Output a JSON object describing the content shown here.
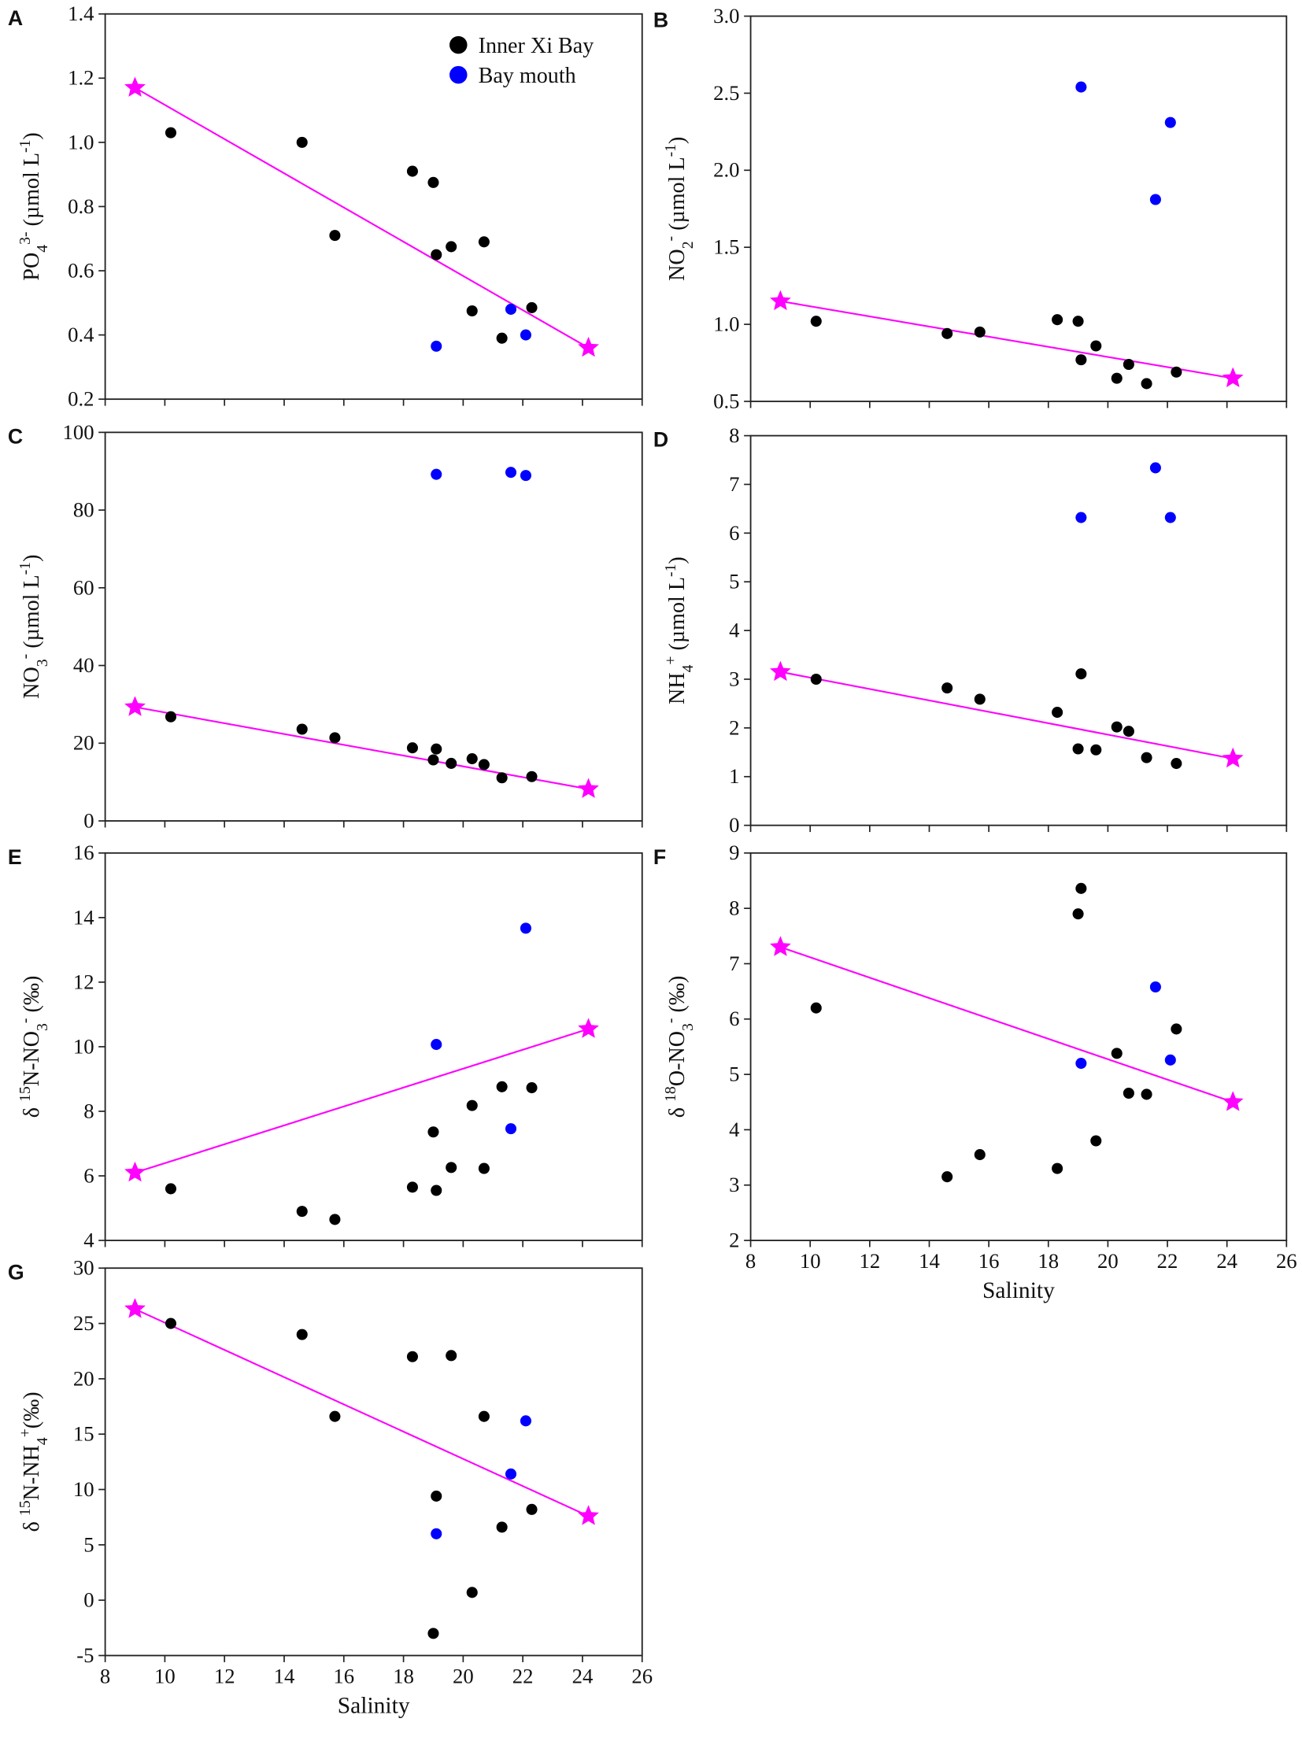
{
  "colors": {
    "inner": "#000000",
    "mouth": "#0000ff",
    "line": "#ff00ff",
    "axis": "#222222"
  },
  "legend": {
    "placement": "top-right",
    "entries": [
      {
        "label": "Inner Xi Bay",
        "color": "#000000"
      },
      {
        "label": "Bay mouth",
        "color": "#0000ff"
      }
    ]
  },
  "chart_data": [
    {
      "panel": "A",
      "type": "scatter",
      "xlabel": "",
      "xlim": [
        8,
        26
      ],
      "xticks": [
        8,
        10,
        12,
        14,
        16,
        18,
        20,
        22,
        24,
        26
      ],
      "show_xtick_labels": false,
      "ylabel": [
        {
          "t": "PO"
        },
        {
          "t": "4",
          "s": "sub"
        },
        {
          "t": "3-",
          "s": "sup"
        },
        {
          "t": " (µmol L"
        },
        {
          "t": "-1",
          "s": "sup"
        },
        {
          "t": ")"
        }
      ],
      "ylim": [
        0.2,
        1.4
      ],
      "yticks": [
        "0.2",
        "0.4",
        "0.6",
        "0.8",
        "1.0",
        "1.2",
        "1.4"
      ],
      "series": [
        {
          "name": "Inner Xi Bay",
          "points": [
            [
              10.2,
              1.03
            ],
            [
              14.6,
              1.0
            ],
            [
              15.7,
              0.71
            ],
            [
              18.3,
              0.91
            ],
            [
              19.0,
              0.875
            ],
            [
              19.1,
              0.65
            ],
            [
              19.6,
              0.675
            ],
            [
              20.3,
              0.475
            ],
            [
              20.7,
              0.69
            ],
            [
              21.3,
              0.39
            ],
            [
              22.3,
              0.485
            ]
          ]
        },
        {
          "name": "Bay mouth",
          "points": [
            [
              19.1,
              0.365
            ],
            [
              21.6,
              0.48
            ],
            [
              22.1,
              0.4
            ]
          ]
        }
      ],
      "endmembers": [
        [
          9.0,
          1.17
        ],
        [
          24.2,
          0.36
        ]
      ]
    },
    {
      "panel": "B",
      "type": "scatter",
      "xlabel": "",
      "xlim": [
        8,
        26
      ],
      "xticks": [
        8,
        10,
        12,
        14,
        16,
        18,
        20,
        22,
        24,
        26
      ],
      "show_xtick_labels": false,
      "ylabel": [
        {
          "t": "NO"
        },
        {
          "t": "2",
          "s": "sub"
        },
        {
          "t": "-",
          "s": "sup"
        },
        {
          "t": " (µmol L"
        },
        {
          "t": "-1",
          "s": "sup"
        },
        {
          "t": ")"
        }
      ],
      "ylim": [
        0.5,
        3.0
      ],
      "yticks": [
        "0.5",
        "1.0",
        "1.5",
        "2.0",
        "2.5",
        "3.0"
      ],
      "series": [
        {
          "name": "Inner Xi Bay",
          "points": [
            [
              10.2,
              1.02
            ],
            [
              14.6,
              0.94
            ],
            [
              15.7,
              0.95
            ],
            [
              18.3,
              1.03
            ],
            [
              19.0,
              1.02
            ],
            [
              19.1,
              0.77
            ],
            [
              19.6,
              0.86
            ],
            [
              20.3,
              0.65
            ],
            [
              20.7,
              0.74
            ],
            [
              21.3,
              0.615
            ],
            [
              22.3,
              0.69
            ]
          ]
        },
        {
          "name": "Bay mouth",
          "points": [
            [
              19.1,
              2.54
            ],
            [
              21.6,
              1.81
            ],
            [
              22.1,
              2.31
            ]
          ]
        }
      ],
      "endmembers": [
        [
          9.0,
          1.15
        ],
        [
          24.2,
          0.65
        ]
      ]
    },
    {
      "panel": "C",
      "type": "scatter",
      "xlabel": "",
      "xlim": [
        8,
        26
      ],
      "xticks": [
        8,
        10,
        12,
        14,
        16,
        18,
        20,
        22,
        24,
        26
      ],
      "show_xtick_labels": false,
      "ylabel": [
        {
          "t": "NO"
        },
        {
          "t": "3",
          "s": "sub"
        },
        {
          "t": "-",
          "s": "sup"
        },
        {
          "t": " (µmol L"
        },
        {
          "t": "-1",
          "s": "sup"
        },
        {
          "t": ")"
        }
      ],
      "ylim": [
        0,
        100
      ],
      "yticks": [
        "0",
        "20",
        "40",
        "60",
        "80",
        "100"
      ],
      "series": [
        {
          "name": "Inner Xi Bay",
          "points": [
            [
              10.2,
              26.8
            ],
            [
              14.6,
              23.6
            ],
            [
              15.7,
              21.4
            ],
            [
              18.3,
              18.8
            ],
            [
              19.0,
              15.7
            ],
            [
              19.1,
              18.5
            ],
            [
              19.6,
              14.8
            ],
            [
              20.3,
              16.0
            ],
            [
              20.7,
              14.5
            ],
            [
              21.3,
              11.1
            ],
            [
              22.3,
              11.4
            ]
          ]
        },
        {
          "name": "Bay mouth",
          "points": [
            [
              19.1,
              89.2
            ],
            [
              21.6,
              89.7
            ],
            [
              22.1,
              88.9
            ]
          ]
        }
      ],
      "endmembers": [
        [
          9.0,
          29.3
        ],
        [
          24.2,
          8.2
        ]
      ]
    },
    {
      "panel": "D",
      "type": "scatter",
      "xlabel": "",
      "xlim": [
        8,
        26
      ],
      "xticks": [
        8,
        10,
        12,
        14,
        16,
        18,
        20,
        22,
        24,
        26
      ],
      "show_xtick_labels": false,
      "ylabel": [
        {
          "t": "NH"
        },
        {
          "t": "4",
          "s": "sub"
        },
        {
          "t": "+",
          "s": "sup"
        },
        {
          "t": " (µmol L"
        },
        {
          "t": "-1",
          "s": "sup"
        },
        {
          "t": ")"
        }
      ],
      "ylim": [
        0,
        8
      ],
      "yticks": [
        "0",
        "1",
        "2",
        "3",
        "4",
        "5",
        "6",
        "7",
        "8"
      ],
      "series": [
        {
          "name": "Inner Xi Bay",
          "points": [
            [
              10.2,
              3.0
            ],
            [
              14.6,
              2.82
            ],
            [
              15.7,
              2.59
            ],
            [
              18.3,
              2.32
            ],
            [
              19.0,
              1.57
            ],
            [
              19.1,
              3.11
            ],
            [
              19.6,
              1.55
            ],
            [
              20.3,
              2.02
            ],
            [
              20.7,
              1.93
            ],
            [
              21.3,
              1.39
            ],
            [
              22.3,
              1.27
            ]
          ]
        },
        {
          "name": "Bay mouth",
          "points": [
            [
              19.1,
              6.32
            ],
            [
              21.6,
              7.34
            ],
            [
              22.1,
              6.32
            ]
          ]
        }
      ],
      "endmembers": [
        [
          9.0,
          3.15
        ],
        [
          24.2,
          1.37
        ]
      ]
    },
    {
      "panel": "E",
      "type": "scatter",
      "xlabel": "",
      "xlim": [
        8,
        26
      ],
      "xticks": [
        8,
        10,
        12,
        14,
        16,
        18,
        20,
        22,
        24,
        26
      ],
      "show_xtick_labels": false,
      "ylabel": [
        {
          "t": "δ "
        },
        {
          "t": "15",
          "s": "sup"
        },
        {
          "t": "N-NO"
        },
        {
          "t": "3",
          "s": "sub"
        },
        {
          "t": "-",
          "s": "sup"
        },
        {
          "t": " (‰)"
        }
      ],
      "ylim": [
        4,
        16
      ],
      "yticks": [
        "4",
        "6",
        "8",
        "10",
        "12",
        "14",
        "16"
      ],
      "series": [
        {
          "name": "Inner Xi Bay",
          "points": [
            [
              10.2,
              5.6
            ],
            [
              14.6,
              4.9
            ],
            [
              15.7,
              4.65
            ],
            [
              18.3,
              5.65
            ],
            [
              19.0,
              7.36
            ],
            [
              19.1,
              5.55
            ],
            [
              19.6,
              6.26
            ],
            [
              20.3,
              8.18
            ],
            [
              20.7,
              6.23
            ],
            [
              21.3,
              8.76
            ],
            [
              22.3,
              8.73
            ]
          ]
        },
        {
          "name": "Bay mouth",
          "points": [
            [
              19.1,
              10.07
            ],
            [
              21.6,
              7.46
            ],
            [
              22.1,
              13.67
            ]
          ]
        }
      ],
      "endmembers": [
        [
          9.0,
          6.1
        ],
        [
          24.2,
          10.55
        ]
      ]
    },
    {
      "panel": "F",
      "type": "scatter",
      "xlabel": "Salinity",
      "xlim": [
        8,
        26
      ],
      "xticks": [
        8,
        10,
        12,
        14,
        16,
        18,
        20,
        22,
        24,
        26
      ],
      "show_xtick_labels": true,
      "ylabel": [
        {
          "t": "δ "
        },
        {
          "t": "18",
          "s": "sup"
        },
        {
          "t": "O-NO"
        },
        {
          "t": "3",
          "s": "sub"
        },
        {
          "t": "-",
          "s": "sup"
        },
        {
          "t": " (‰)"
        }
      ],
      "ylim": [
        2,
        9
      ],
      "yticks": [
        "2",
        "3",
        "4",
        "5",
        "6",
        "7",
        "8",
        "9"
      ],
      "series": [
        {
          "name": "Inner Xi Bay",
          "points": [
            [
              10.2,
              6.2
            ],
            [
              14.6,
              3.15
            ],
            [
              15.7,
              3.55
            ],
            [
              18.3,
              3.3
            ],
            [
              19.0,
              7.9
            ],
            [
              19.1,
              8.36
            ],
            [
              19.6,
              3.8
            ],
            [
              20.3,
              5.38
            ],
            [
              20.7,
              4.66
            ],
            [
              21.3,
              4.64
            ],
            [
              22.3,
              5.82
            ]
          ]
        },
        {
          "name": "Bay mouth",
          "points": [
            [
              19.1,
              5.2
            ],
            [
              21.6,
              6.58
            ],
            [
              22.1,
              5.26
            ]
          ]
        }
      ],
      "endmembers": [
        [
          9.0,
          7.3
        ],
        [
          24.2,
          4.5
        ]
      ]
    },
    {
      "panel": "G",
      "type": "scatter",
      "xlabel": "Salinity",
      "xlim": [
        8,
        26
      ],
      "xticks": [
        8,
        10,
        12,
        14,
        16,
        18,
        20,
        22,
        24,
        26
      ],
      "show_xtick_labels": true,
      "ylabel": [
        {
          "t": "δ "
        },
        {
          "t": "15",
          "s": "sup"
        },
        {
          "t": "N-NH"
        },
        {
          "t": "4",
          "s": "sub"
        },
        {
          "t": "+",
          "s": "sup"
        },
        {
          "t": "(‰)"
        }
      ],
      "ylim": [
        -5,
        30
      ],
      "yticks": [
        "-5",
        "0",
        "5",
        "10",
        "15",
        "20",
        "25",
        "30"
      ],
      "series": [
        {
          "name": "Inner Xi Bay",
          "points": [
            [
              10.2,
              25.0
            ],
            [
              14.6,
              24.0
            ],
            [
              15.7,
              16.6
            ],
            [
              18.3,
              22.0
            ],
            [
              19.0,
              -3.0
            ],
            [
              19.1,
              9.4
            ],
            [
              19.6,
              22.1
            ],
            [
              20.3,
              0.7
            ],
            [
              20.7,
              16.6
            ],
            [
              21.3,
              6.6
            ],
            [
              22.3,
              8.2
            ]
          ]
        },
        {
          "name": "Bay mouth",
          "points": [
            [
              19.1,
              6.0
            ],
            [
              21.6,
              11.4
            ],
            [
              22.1,
              16.2
            ]
          ]
        }
      ],
      "endmembers": [
        [
          9.0,
          26.3
        ],
        [
          24.2,
          7.6
        ]
      ]
    }
  ]
}
